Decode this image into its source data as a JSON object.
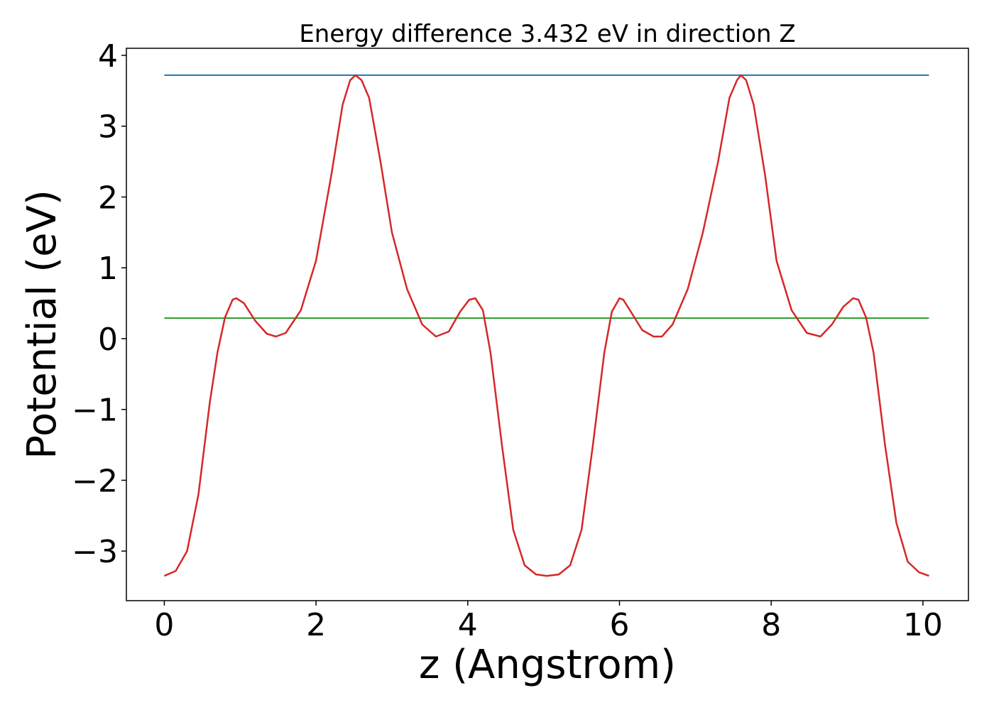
{
  "chart_data": {
    "type": "line",
    "title": "Energy difference 3.432 eV in direction Z",
    "xlabel": "z (Angstrom)",
    "ylabel": "Potential (eV)",
    "xlim": [
      -0.5,
      10.6
    ],
    "ylim": [
      -3.7,
      4.1
    ],
    "xticks": [
      0,
      2,
      4,
      6,
      8,
      10
    ],
    "yticks": [
      -3,
      -2,
      -1,
      0,
      1,
      2,
      3,
      4
    ],
    "yticklabels": [
      "−3",
      "−2",
      "−1",
      "0",
      "1",
      "2",
      "3",
      "4"
    ],
    "grid": false,
    "series": [
      {
        "color": "#1f77b4",
        "x": [
          0,
          10.08
        ],
        "y": [
          3.72,
          3.72
        ]
      },
      {
        "color": "#2ca02c",
        "x": [
          0,
          10.08
        ],
        "y": [
          0.29,
          0.29
        ]
      },
      {
        "color": "#d62728",
        "x": [
          0,
          0.15,
          0.3,
          0.45,
          0.6,
          0.7,
          0.8,
          0.9,
          0.95,
          1.05,
          1.2,
          1.35,
          1.47,
          1.6,
          1.8,
          2.0,
          2.2,
          2.35,
          2.45,
          2.52,
          2.6,
          2.7,
          2.85,
          3.0,
          3.2,
          3.4,
          3.58,
          3.75,
          3.9,
          4.02,
          4.1,
          4.2,
          4.3,
          4.45,
          4.6,
          4.75,
          4.9,
          5.04,
          5.2,
          5.35,
          5.5,
          5.65,
          5.8,
          5.9,
          6.0,
          6.05,
          6.15,
          6.3,
          6.45,
          6.56,
          6.7,
          6.9,
          7.1,
          7.3,
          7.45,
          7.55,
          7.6,
          7.67,
          7.77,
          7.92,
          8.07,
          8.27,
          8.47,
          8.65,
          8.8,
          8.95,
          9.08,
          9.15,
          9.25,
          9.35,
          9.5,
          9.65,
          9.8,
          9.95,
          10.08
        ],
        "y": [
          -3.35,
          -3.28,
          -3.0,
          -2.2,
          -0.9,
          -0.2,
          0.3,
          0.55,
          0.57,
          0.5,
          0.25,
          0.07,
          0.03,
          0.08,
          0.4,
          1.1,
          2.3,
          3.3,
          3.65,
          3.72,
          3.65,
          3.4,
          2.5,
          1.5,
          0.7,
          0.2,
          0.03,
          0.1,
          0.38,
          0.55,
          0.57,
          0.4,
          -0.2,
          -1.5,
          -2.7,
          -3.2,
          -3.33,
          -3.35,
          -3.33,
          -3.2,
          -2.7,
          -1.5,
          -0.2,
          0.38,
          0.57,
          0.55,
          0.38,
          0.12,
          0.03,
          0.03,
          0.2,
          0.7,
          1.5,
          2.5,
          3.4,
          3.65,
          3.72,
          3.65,
          3.3,
          2.3,
          1.1,
          0.4,
          0.08,
          0.03,
          0.2,
          0.45,
          0.57,
          0.55,
          0.3,
          -0.2,
          -1.5,
          -2.6,
          -3.15,
          -3.3,
          -3.35
        ]
      }
    ]
  }
}
